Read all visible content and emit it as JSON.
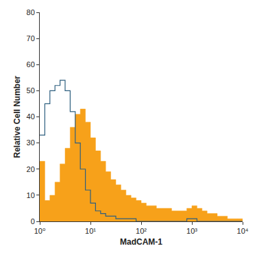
{
  "chart_data": {
    "type": "histogram",
    "x_label": "MadCAM-1",
    "y_label": "Relative Cell Number",
    "bins": [
      1,
      1.259,
      1.585,
      1.995,
      2.512,
      3.162,
      3.981,
      5.012,
      6.31,
      7.943,
      10,
      12.59,
      15.85,
      19.95,
      25.12,
      31.62,
      39.81,
      50.12,
      63.1,
      79.43,
      100,
      125.9,
      158.5,
      199.5,
      251.2,
      316.2,
      398.1,
      501.2,
      631,
      794.3,
      1000,
      1259,
      1585,
      1995,
      2512,
      3162,
      3981,
      5012,
      6310,
      7943,
      10000
    ],
    "series": [
      {
        "color": "#f7a11a",
        "line_style": "filled",
        "values": [
          23,
          8,
          10,
          15,
          22,
          28,
          36,
          41,
          43,
          38,
          32,
          27,
          23,
          19,
          16,
          14,
          12,
          10,
          9,
          8,
          7,
          6,
          6,
          5,
          5,
          5,
          4,
          4,
          4,
          5,
          6,
          5,
          4,
          3,
          3,
          2,
          2,
          1,
          1,
          1
        ]
      },
      {
        "color": "#2e5f7f",
        "line_style": "outline",
        "values": [
          33,
          45,
          50,
          52,
          54,
          50,
          42,
          30,
          20,
          12,
          7,
          4,
          3,
          2,
          2,
          1,
          1,
          1,
          1,
          0,
          0,
          0,
          0,
          0,
          0,
          0,
          0,
          0,
          0,
          1,
          1,
          0,
          0,
          0,
          0,
          0,
          0,
          0,
          0,
          0
        ]
      }
    ],
    "log": "x",
    "xlim": [
      1,
      10000
    ],
    "xticks": [
      {
        "value": 1,
        "label": "10⁰"
      },
      {
        "value": 10,
        "label": "10¹"
      },
      {
        "value": 100,
        "label": "10²"
      },
      {
        "value": 1000,
        "label": "10³"
      },
      {
        "value": 10000,
        "label": "10⁴"
      }
    ],
    "ylim": [
      0,
      80
    ],
    "yticks": [
      0,
      10,
      20,
      30,
      40,
      50,
      60,
      70,
      80
    ],
    "grid": false
  }
}
